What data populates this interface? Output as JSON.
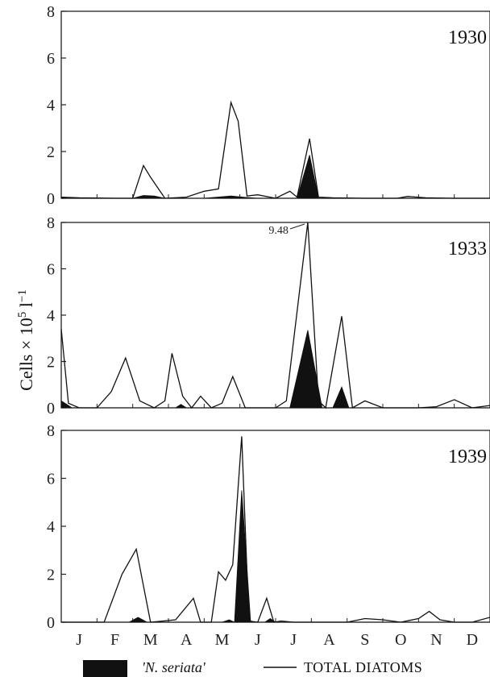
{
  "chart_data": {
    "type": "area",
    "ylabel": "Cells × 10",
    "ylabel_sup": "5",
    "ylabel_unit": " l",
    "ylabel_unit_sup": "−1",
    "months": [
      "J",
      "F",
      "M",
      "A",
      "M",
      "J",
      "J",
      "A",
      "S",
      "O",
      "N",
      "D"
    ],
    "yticks": [
      0,
      2,
      4,
      6,
      8
    ],
    "ylim": [
      0,
      8
    ],
    "xlim": [
      0,
      12
    ],
    "grid": false,
    "legend": {
      "position": "bottom",
      "items": [
        {
          "label": "'N. seriata'",
          "style": "filled",
          "color": "#111111"
        },
        {
          "label": "TOTAL DIATOMS",
          "style": "line",
          "color": "#111111"
        }
      ]
    },
    "panels": [
      {
        "year": "1930",
        "series": [
          {
            "name": "TOTAL DIATOMS",
            "kind": "line",
            "x": [
              0,
              0.5,
              1.5,
              2.0,
              2.3,
              2.5,
              2.9,
              3.5,
              4.0,
              4.4,
              4.75,
              4.95,
              5.2,
              5.5,
              6.0,
              6.4,
              6.6,
              6.95,
              7.2,
              7.6,
              8.5,
              9.4,
              9.7,
              10.2,
              11.0,
              12.0
            ],
            "y": [
              0.05,
              0.02,
              0.0,
              0.0,
              1.4,
              0.9,
              0.0,
              0.05,
              0.3,
              0.4,
              4.1,
              3.3,
              0.1,
              0.15,
              0.0,
              0.3,
              0.05,
              2.55,
              0.05,
              0.02,
              0.0,
              0.0,
              0.08,
              0.02,
              0.0,
              0.0
            ]
          },
          {
            "name": "'N. seriata'",
            "kind": "filled",
            "x": [
              0,
              0.5,
              2.0,
              2.3,
              2.6,
              2.9,
              4.0,
              4.75,
              5.1,
              5.5,
              6.6,
              6.95,
              7.2,
              12.0
            ],
            "y": [
              0.05,
              0.0,
              0.0,
              0.12,
              0.1,
              0.0,
              0.0,
              0.1,
              0.05,
              0.0,
              0.0,
              1.85,
              0.0,
              0.0
            ]
          }
        ]
      },
      {
        "year": "1933",
        "annotation": {
          "text": "9.48",
          "x": 6.9,
          "y": 8
        },
        "series": [
          {
            "name": "TOTAL DIATOMS",
            "kind": "line",
            "x": [
              0,
              0.2,
              0.5,
              1.0,
              1.4,
              1.8,
              2.2,
              2.6,
              2.9,
              3.1,
              3.4,
              3.65,
              3.9,
              4.2,
              4.5,
              4.8,
              5.15,
              5.45,
              6.0,
              6.3,
              6.9,
              7.2,
              7.4,
              7.85,
              8.15,
              8.5,
              9.0,
              9.5,
              10.0,
              10.5,
              11.0,
              11.5,
              12.0
            ],
            "y": [
              3.4,
              0.2,
              0.0,
              0.0,
              0.7,
              2.15,
              0.3,
              0.0,
              0.3,
              2.35,
              0.5,
              0.0,
              0.5,
              0.0,
              0.2,
              1.35,
              0.0,
              0.0,
              0.0,
              0.3,
              8.0,
              0.3,
              0.0,
              3.95,
              0.0,
              0.3,
              0.0,
              0.0,
              0.0,
              0.05,
              0.35,
              0.0,
              0.1
            ]
          },
          {
            "name": "'N. seriata'",
            "kind": "filled",
            "x": [
              0,
              0.3,
              3.2,
              3.35,
              3.5,
              6.4,
              6.9,
              7.3,
              7.6,
              7.85,
              8.05,
              12.0
            ],
            "y": [
              0.3,
              0.0,
              0.0,
              0.15,
              0.0,
              0.0,
              3.35,
              0.0,
              0.0,
              0.9,
              0.0,
              0.0
            ]
          }
        ]
      },
      {
        "year": "1939",
        "series": [
          {
            "name": "TOTAL DIATOMS",
            "kind": "line",
            "x": [
              0,
              0.7,
              1.2,
              1.7,
              2.1,
              2.5,
              3.2,
              3.7,
              3.9,
              4.2,
              4.4,
              4.6,
              4.8,
              5.05,
              5.25,
              5.5,
              5.75,
              5.95,
              6.15,
              6.5,
              7.0,
              8.0,
              8.5,
              9.0,
              9.5,
              10.0,
              10.3,
              10.6,
              11.0,
              11.5,
              12.0
            ],
            "y": [
              0.0,
              0.0,
              0.0,
              2.0,
              3.05,
              0.0,
              0.1,
              1.0,
              0.0,
              0.0,
              2.1,
              1.75,
              2.4,
              7.75,
              0.05,
              0.0,
              1.0,
              0.0,
              0.05,
              0.0,
              0.0,
              0.0,
              0.15,
              0.1,
              0.0,
              0.15,
              0.45,
              0.1,
              0.0,
              0.0,
              0.2
            ]
          },
          {
            "name": "'N. seriata'",
            "kind": "filled",
            "x": [
              0,
              1.9,
              2.15,
              2.4,
              4.5,
              4.7,
              4.85,
              5.05,
              5.3,
              5.7,
              5.85,
              6.0,
              12.0
            ],
            "y": [
              0.0,
              0.0,
              0.2,
              0.0,
              0.0,
              0.1,
              0.0,
              5.5,
              0.0,
              0.0,
              0.15,
              0.0,
              0.0
            ]
          }
        ]
      }
    ]
  }
}
